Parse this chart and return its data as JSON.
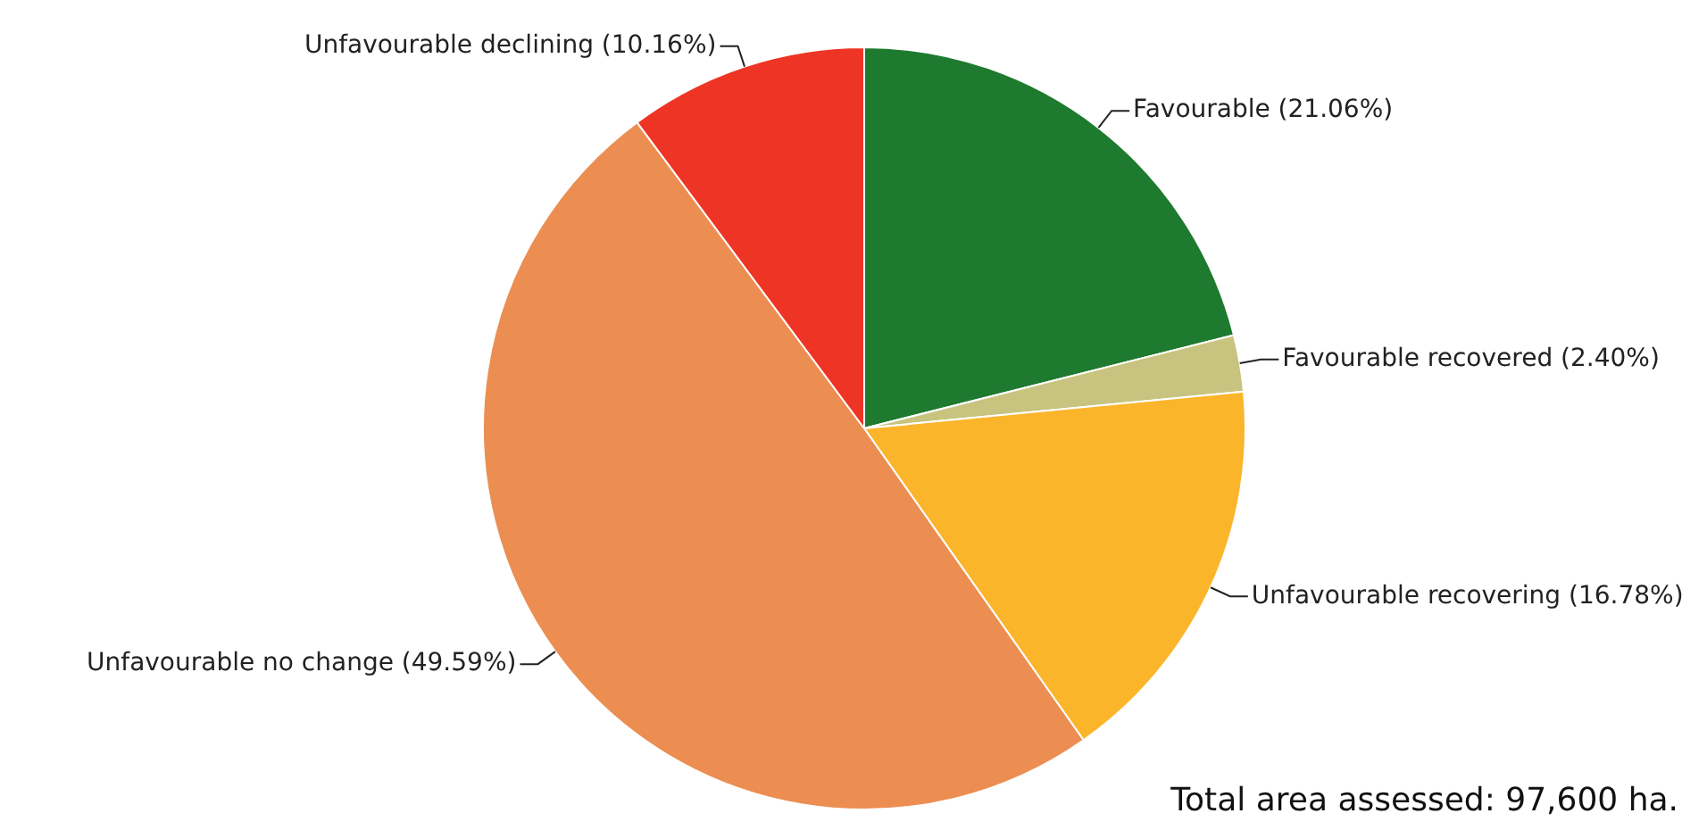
{
  "chart_data": {
    "type": "pie",
    "categories": [
      "Favourable (21.06%)",
      "Favourable recovered (2.40%)",
      "Unfavourable recovering (16.78%)",
      "Unfavourable no change (49.59%)",
      "Unfavourable declining (10.16%)"
    ],
    "values": [
      21.06,
      2.4,
      16.78,
      49.59,
      10.16
    ],
    "colors": [
      "#1e7a2e",
      "#c8c47f",
      "#fbb52b",
      "#ec8e51",
      "#ee3424"
    ],
    "annotations": [
      "Total area assessed: 97,600 ha."
    ]
  }
}
